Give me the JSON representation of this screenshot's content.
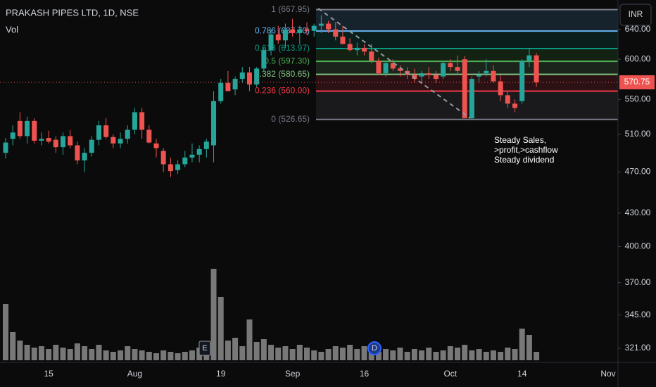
{
  "chart_data": {
    "type": "candlestick",
    "title": "PRAKASH PIPES LTD, 1D, NSE",
    "volume_label": "Vol",
    "currency": "INR",
    "log_scale": true,
    "ylim": [
      309,
      682
    ],
    "yticks": [
      {
        "value": 640,
        "label": "640.00"
      },
      {
        "value": 600,
        "label": "600.00"
      },
      {
        "value": 550,
        "label": "550.00"
      },
      {
        "value": 510,
        "label": "510.00"
      },
      {
        "value": 470,
        "label": "470.00"
      },
      {
        "value": 430,
        "label": "430.00"
      },
      {
        "value": 400,
        "label": "400.00"
      },
      {
        "value": 370,
        "label": "370.00"
      },
      {
        "value": 345,
        "label": "345.00"
      },
      {
        "value": 321,
        "label": "321.00"
      }
    ],
    "up_color": "#26a69a",
    "down_color": "#ef5350",
    "volume_color": "#9e9e9e",
    "categories": [
      null,
      null,
      null,
      null,
      null,
      null,
      "15",
      null,
      null,
      null,
      null,
      null,
      null,
      null,
      null,
      null,
      null,
      null,
      "Aug",
      null,
      null,
      null,
      null,
      null,
      null,
      null,
      null,
      null,
      null,
      null,
      "19",
      null,
      null,
      null,
      null,
      null,
      null,
      null,
      null,
      null,
      "Sep",
      null,
      null,
      null,
      null,
      null,
      null,
      null,
      null,
      null,
      "16",
      null,
      null,
      null,
      null,
      null,
      null,
      null,
      null,
      null,
      null,
      null,
      "Oct",
      null,
      null,
      null,
      null,
      null,
      null,
      null,
      null,
      null,
      "14",
      null,
      null,
      null,
      null,
      null,
      null,
      null,
      null,
      null,
      null,
      null,
      "Nov"
    ],
    "open": [
      490,
      505,
      525,
      508,
      525,
      503,
      506,
      504,
      496,
      508,
      498,
      482,
      490,
      504,
      520,
      507,
      500,
      505,
      515,
      535,
      515,
      500,
      492,
      478,
      472,
      478,
      485,
      488,
      494,
      498,
      548,
      570,
      562,
      575,
      583,
      568,
      588,
      612,
      633,
      625,
      640,
      635,
      640,
      638,
      645,
      648,
      640,
      630,
      620,
      612,
      615,
      610,
      598,
      582,
      595,
      588,
      585,
      580,
      578,
      582,
      580,
      578,
      595,
      590,
      600,
      528,
      578,
      582,
      585,
      572,
      555,
      545,
      548,
      598,
      605,
      null,
      null,
      null,
      null,
      null,
      null,
      null,
      null,
      null,
      null
    ],
    "high": [
      506,
      520,
      535,
      530,
      528,
      512,
      514,
      508,
      512,
      515,
      502,
      495,
      508,
      525,
      528,
      510,
      512,
      520,
      540,
      540,
      520,
      505,
      495,
      485,
      482,
      492,
      500,
      498,
      505,
      560,
      575,
      585,
      578,
      590,
      590,
      590,
      615,
      640,
      645,
      648,
      655,
      645,
      650,
      648,
      660,
      652,
      650,
      645,
      628,
      622,
      620,
      620,
      602,
      598,
      600,
      592,
      590,
      588,
      585,
      590,
      585,
      598,
      600,
      605,
      604,
      578,
      585,
      600,
      592,
      580,
      560,
      550,
      600,
      615,
      608,
      null,
      null,
      null,
      null,
      null,
      null,
      null,
      null,
      null,
      null
    ],
    "low": [
      484,
      498,
      505,
      500,
      500,
      498,
      500,
      490,
      488,
      495,
      478,
      470,
      486,
      498,
      505,
      495,
      495,
      500,
      510,
      505,
      500,
      485,
      470,
      465,
      468,
      475,
      480,
      480,
      485,
      480,
      545,
      560,
      555,
      570,
      560,
      565,
      585,
      605,
      620,
      615,
      630,
      620,
      632,
      630,
      635,
      635,
      625,
      620,
      610,
      605,
      605,
      595,
      580,
      578,
      585,
      578,
      575,
      570,
      570,
      575,
      570,
      575,
      585,
      580,
      530,
      526,
      570,
      578,
      570,
      548,
      540,
      535,
      545,
      590,
      565,
      null,
      null,
      null,
      null,
      null,
      null,
      null,
      null,
      null,
      null
    ],
    "close": [
      501,
      512,
      508,
      525,
      503,
      505,
      502,
      496,
      508,
      498,
      482,
      490,
      504,
      520,
      507,
      500,
      505,
      515,
      535,
      515,
      501,
      495,
      478,
      471,
      478,
      485,
      488,
      494,
      502,
      548,
      570,
      560,
      575,
      583,
      568,
      588,
      612,
      633,
      625,
      640,
      635,
      640,
      638,
      645,
      648,
      640,
      630,
      620,
      612,
      615,
      610,
      598,
      582,
      595,
      588,
      585,
      580,
      575,
      582,
      580,
      575,
      595,
      590,
      585,
      528,
      575,
      580,
      585,
      572,
      555,
      545,
      540,
      598,
      605,
      570.75,
      null,
      null,
      null,
      null,
      null,
      null,
      null,
      null,
      null,
      null
    ],
    "volume_lim": [
      0,
      140
    ],
    "volume": [
      80,
      40,
      28,
      22,
      18,
      20,
      16,
      22,
      18,
      16,
      24,
      20,
      16,
      22,
      14,
      12,
      14,
      20,
      16,
      14,
      12,
      10,
      14,
      12,
      10,
      12,
      14,
      18,
      16,
      130,
      90,
      28,
      32,
      20,
      58,
      26,
      30,
      22,
      18,
      20,
      16,
      22,
      18,
      14,
      12,
      16,
      20,
      18,
      22,
      16,
      20,
      14,
      12,
      16,
      14,
      18,
      12,
      16,
      14,
      18,
      12,
      14,
      20,
      18,
      22,
      14,
      16,
      12,
      14,
      12,
      18,
      16,
      45,
      36,
      12,
      null,
      null,
      null,
      null,
      null,
      null,
      null,
      null,
      null,
      null
    ],
    "fib_levels": [
      {
        "label": "1 (667.95)",
        "value": 667.95,
        "color": "#787b86"
      },
      {
        "label": "0.786 (637.70)",
        "value": 637.7,
        "color": "#64b5f6"
      },
      {
        "label": "0.618 (613.97)",
        "value": 613.97,
        "color": "#089981"
      },
      {
        "label": "0.5 (597.30)",
        "value": 597.3,
        "color": "#4caf50"
      },
      {
        "label": "0.382 (580.65)",
        "value": 580.65,
        "color": "#81c784"
      },
      {
        "label": "0.236 (560.00)",
        "value": 560,
        "color": "#f23645"
      },
      {
        "label": "0 (526.65)",
        "value": 526.65,
        "color": "#787b86"
      }
    ],
    "annotation": [
      "Steady Sales,",
      ">profit,>cashflow",
      "Steady dividend"
    ],
    "events": [
      "E",
      "D"
    ]
  }
}
